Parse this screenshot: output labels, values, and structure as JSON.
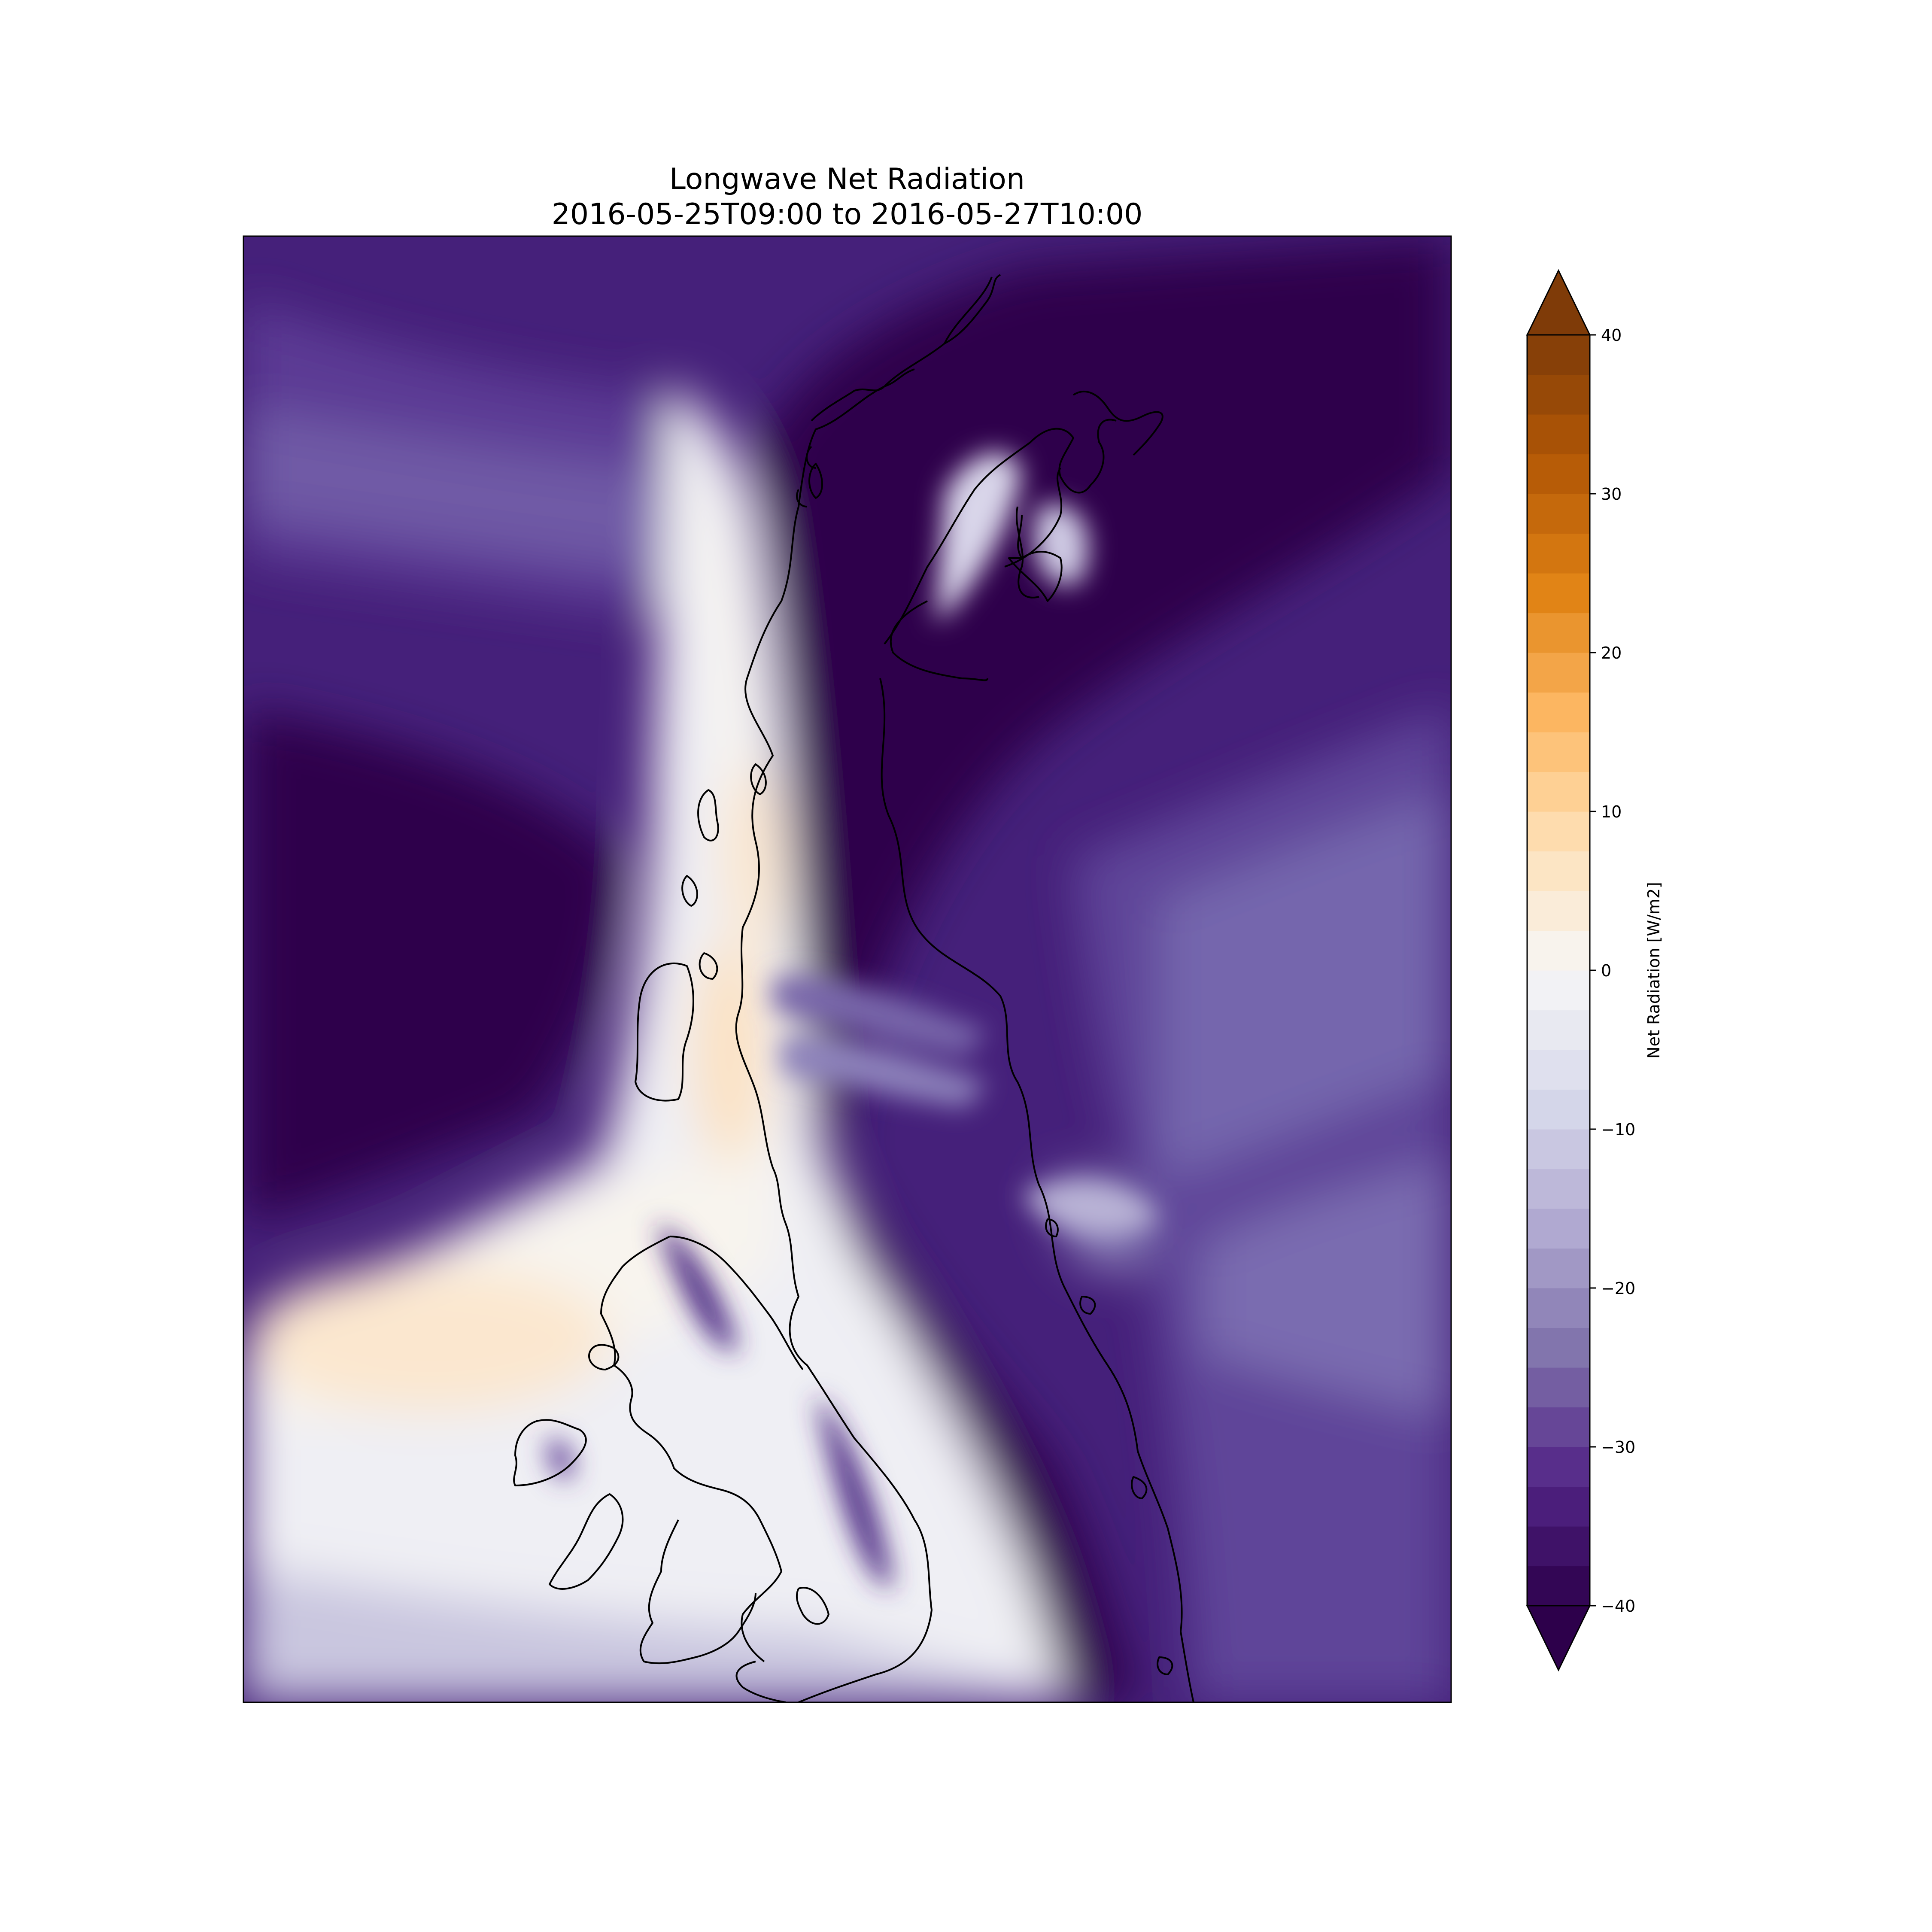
{
  "figure": {
    "title_line1": "Longwave Net Radiation",
    "title_line2": "2016-05-25T09:00 to 2016-05-27T10:00"
  },
  "colorbar": {
    "label": "Net Radiation [W/m2]",
    "min": -40,
    "max": 40,
    "level_step": 2.5,
    "extend": "both",
    "ticks": [
      "−40",
      "−30",
      "−20",
      "−10",
      "0",
      "10",
      "20",
      "30",
      "40"
    ],
    "colormap": "PuOr_r",
    "color_low": "#2d004b",
    "color_mid": "#f7f7f7",
    "color_high": "#7f3b08",
    "over_color": "#7f3b08",
    "under_color": "#2d004b"
  },
  "map": {
    "projection": "regional map of the Antarctic Peninsula",
    "coastline_color": "#000000",
    "field_description_colors": {
      "strong_negative": "#2d004b",
      "moderate_negative": "#542788",
      "weak_negative": "#8073ac",
      "near_zero": "#eeeef3",
      "slight_positive": "#fbe8d0"
    }
  }
}
